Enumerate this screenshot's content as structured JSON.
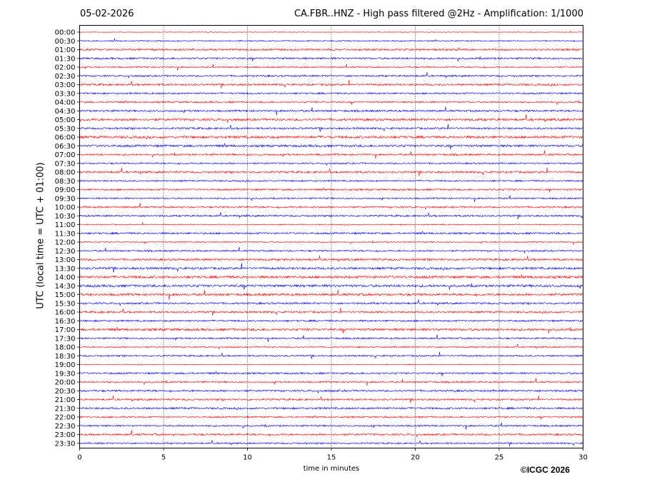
{
  "header": {
    "date": "05-02-2026",
    "title": "CA.FBR..HNZ - High pass filtered @2Hz - Amplification: 1/1000"
  },
  "footer": {
    "copyright": "©ICGC 2026"
  },
  "chart_data": {
    "type": "line",
    "title": "CA.FBR..HNZ - High pass filtered @2Hz - Amplification: 1/1000",
    "xlabel": "time in minutes",
    "ylabel": "UTC (local time = UTC + 01:00)",
    "xlim": [
      0,
      30
    ],
    "x_ticks": [
      0,
      5,
      10,
      15,
      20,
      25,
      30
    ],
    "x_tick_labels": [
      "0",
      "5",
      "10",
      "15",
      "20",
      "25",
      "30"
    ],
    "grid": "vertical dotted at each x tick",
    "trace_colors": [
      "#ff0000",
      "#0000ff"
    ],
    "traces": [
      {
        "label": "00:00",
        "color": "#ff0000",
        "activity": 0.05
      },
      {
        "label": "00:30",
        "color": "#0000ff",
        "activity": 0.25
      },
      {
        "label": "01:00",
        "color": "#ff0000",
        "activity": 0.55
      },
      {
        "label": "01:30",
        "color": "#0000ff",
        "activity": 0.55
      },
      {
        "label": "02:00",
        "color": "#ff0000",
        "activity": 0.35
      },
      {
        "label": "02:30",
        "color": "#0000ff",
        "activity": 0.5
      },
      {
        "label": "03:00",
        "color": "#ff0000",
        "activity": 0.6
      },
      {
        "label": "03:30",
        "color": "#0000ff",
        "activity": 0.45
      },
      {
        "label": "04:00",
        "color": "#ff0000",
        "activity": 0.45
      },
      {
        "label": "04:30",
        "color": "#0000ff",
        "activity": 0.55
      },
      {
        "label": "05:00",
        "color": "#ff0000",
        "activity": 0.75
      },
      {
        "label": "05:30",
        "color": "#0000ff",
        "activity": 0.55
      },
      {
        "label": "06:00",
        "color": "#ff0000",
        "activity": 0.8
      },
      {
        "label": "06:30",
        "color": "#0000ff",
        "activity": 0.7
      },
      {
        "label": "07:00",
        "color": "#ff0000",
        "activity": 0.5
      },
      {
        "label": "07:30",
        "color": "#0000ff",
        "activity": 0.4
      },
      {
        "label": "08:00",
        "color": "#ff0000",
        "activity": 0.6
      },
      {
        "label": "08:30",
        "color": "#0000ff",
        "activity": 0.4
      },
      {
        "label": "09:00",
        "color": "#ff0000",
        "activity": 0.5
      },
      {
        "label": "09:30",
        "color": "#0000ff",
        "activity": 0.4
      },
      {
        "label": "10:00",
        "color": "#ff0000",
        "activity": 0.5
      },
      {
        "label": "10:30",
        "color": "#0000ff",
        "activity": 0.5
      },
      {
        "label": "11:00",
        "color": "#ff0000",
        "activity": 0.2
      },
      {
        "label": "11:30",
        "color": "#0000ff",
        "activity": 0.55
      },
      {
        "label": "12:00",
        "color": "#ff0000",
        "activity": 0.25
      },
      {
        "label": "12:30",
        "color": "#0000ff",
        "activity": 0.45
      },
      {
        "label": "13:00",
        "color": "#ff0000",
        "activity": 0.6
      },
      {
        "label": "13:30",
        "color": "#0000ff",
        "activity": 0.7
      },
      {
        "label": "14:00",
        "color": "#ff0000",
        "activity": 0.8
      },
      {
        "label": "14:30",
        "color": "#0000ff",
        "activity": 0.8
      },
      {
        "label": "15:00",
        "color": "#ff0000",
        "activity": 0.7
      },
      {
        "label": "15:30",
        "color": "#0000ff",
        "activity": 0.55
      },
      {
        "label": "16:00",
        "color": "#ff0000",
        "activity": 0.55
      },
      {
        "label": "16:30",
        "color": "#0000ff",
        "activity": 0.5
      },
      {
        "label": "17:00",
        "color": "#ff0000",
        "activity": 0.75
      },
      {
        "label": "17:30",
        "color": "#0000ff",
        "activity": 0.45
      },
      {
        "label": "18:00",
        "color": "#ff0000",
        "activity": 0.35
      },
      {
        "label": "18:30",
        "color": "#0000ff",
        "activity": 0.45
      },
      {
        "label": "19:00",
        "color": "#ff0000",
        "activity": 0.1
      },
      {
        "label": "19:30",
        "color": "#0000ff",
        "activity": 0.5
      },
      {
        "label": "20:00",
        "color": "#ff0000",
        "activity": 0.45
      },
      {
        "label": "20:30",
        "color": "#0000ff",
        "activity": 0.55
      },
      {
        "label": "21:00",
        "color": "#ff0000",
        "activity": 0.5
      },
      {
        "label": "21:30",
        "color": "#0000ff",
        "activity": 0.55
      },
      {
        "label": "22:00",
        "color": "#ff0000",
        "activity": 0.4
      },
      {
        "label": "22:30",
        "color": "#0000ff",
        "activity": 0.45
      },
      {
        "label": "23:00",
        "color": "#ff0000",
        "activity": 0.55
      },
      {
        "label": "23:30",
        "color": "#0000ff",
        "activity": 0.4
      }
    ]
  }
}
